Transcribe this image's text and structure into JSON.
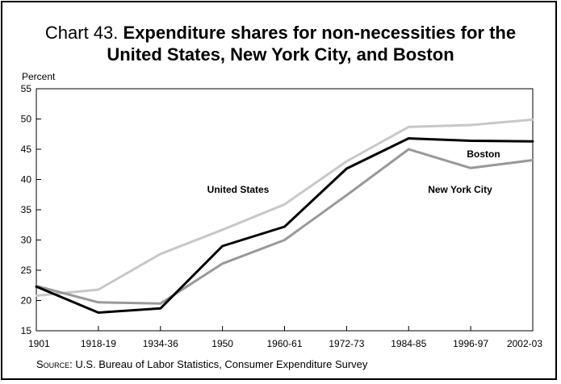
{
  "chart_data": {
    "type": "line",
    "title_prefix": "Chart 43.",
    "title_line1": "Expenditure shares for non-necessities for the",
    "title_line2": "United States, New York City, and Boston",
    "ylabel": "Percent",
    "xlabel": "",
    "ylim": [
      15,
      55
    ],
    "yticks": [
      "15",
      "20",
      "25",
      "30",
      "35",
      "40",
      "45",
      "50",
      "55"
    ],
    "categories": [
      "1901",
      "1918-19",
      "1934-36",
      "1950",
      "1960-61",
      "1972-73",
      "1984-85",
      "1996-97",
      "2002-03"
    ],
    "series": [
      {
        "name": "United States",
        "color": "#c8c8c8",
        "values": [
          20.8,
          21.8,
          27.7,
          31.7,
          35.9,
          43.0,
          48.7,
          49.0,
          49.9
        ]
      },
      {
        "name": "New York City",
        "color": "#999999",
        "values": [
          22.4,
          19.7,
          19.5,
          26.1,
          30.0,
          37.4,
          45.0,
          41.9,
          43.2
        ]
      },
      {
        "name": "Boston",
        "color": "#000000",
        "values": [
          22.3,
          18.0,
          18.7,
          29.0,
          32.2,
          41.8,
          46.8,
          46.4,
          46.3
        ]
      }
    ],
    "grid": false,
    "legend": "inline labels",
    "source_key": "Source:",
    "source_text": " U.S. Bureau of Labor Statistics, Consumer Expenditure Survey"
  }
}
